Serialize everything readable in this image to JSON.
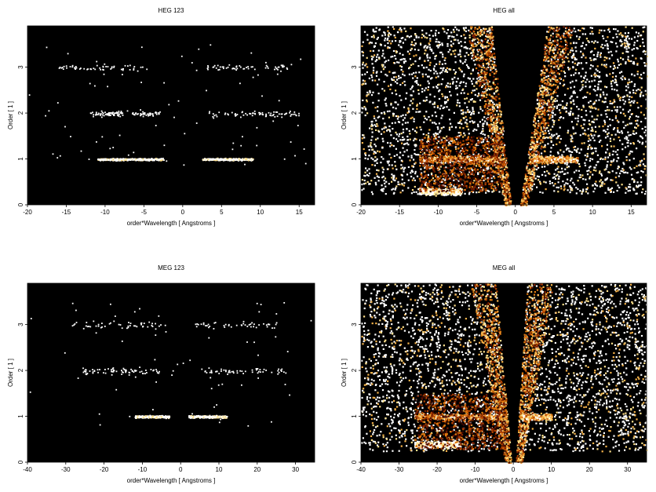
{
  "colors": {
    "background": "#000000",
    "colormap": [
      "#3a0800",
      "#7a1e00",
      "#b34400",
      "#e07a10",
      "#f7b34a",
      "#ffe08a",
      "#ffffff"
    ]
  },
  "chart_data": [
    {
      "type": "heatmap",
      "title": "HEG 123",
      "xlabel": "order*Wavelength [ Angstroms ]",
      "ylabel": "Order [ 1 ]",
      "xlim": [
        -20,
        17
      ],
      "ylim": [
        0,
        3.9
      ],
      "xticks": [
        -20,
        -15,
        -10,
        -5,
        0,
        5,
        10,
        15
      ],
      "yticks": [
        0,
        1,
        2,
        3
      ],
      "legend": "none",
      "grid": false,
      "features": [
        {
          "order": 1,
          "x_range": [
            -11,
            -2.5
          ],
          "density": 0.45
        },
        {
          "order": 1,
          "x_range": [
            2.5,
            9
          ],
          "density": 0.4
        },
        {
          "order": 2,
          "x_range": [
            -12,
            -3
          ],
          "density": 0.12
        },
        {
          "order": 2,
          "x_range": [
            3,
            15
          ],
          "density": 0.08
        },
        {
          "order": 3,
          "x_range": [
            -16,
            -4
          ],
          "density": 0.06
        },
        {
          "order": 3,
          "x_range": [
            3,
            14
          ],
          "density": 0.06
        }
      ]
    },
    {
      "type": "heatmap",
      "title": "HEG all",
      "xlabel": "order*Wavelength [ Angstroms ]",
      "ylabel": "Order [ 1 ]",
      "xlim": [
        -20,
        17
      ],
      "ylim": [
        0,
        3.9
      ],
      "xticks": [
        -20,
        -15,
        -10,
        -5,
        0,
        5,
        10,
        15
      ],
      "yticks": [
        0,
        1,
        2,
        3
      ],
      "legend": "none",
      "grid": false,
      "wedge_gap_at_top": [
        -2.5,
        3.5
      ],
      "features": [
        {
          "order": 1,
          "x_range": [
            -12.5,
            -2
          ],
          "density": 0.9
        },
        {
          "order": 1,
          "x_range": [
            2,
            8
          ],
          "density": 0.8
        },
        {
          "order": 0.3,
          "x_range": [
            -12.5,
            -7
          ],
          "density": 1.0
        }
      ]
    },
    {
      "type": "heatmap",
      "title": "MEG 123",
      "xlabel": "order*Wavelength [ Angstroms ]",
      "ylabel": "Order [ 1 ]",
      "xlim": [
        -40,
        35
      ],
      "ylim": [
        0,
        3.9
      ],
      "xticks": [
        -40,
        -30,
        -20,
        -10,
        0,
        10,
        20,
        30
      ],
      "yticks": [
        0,
        1,
        2,
        3
      ],
      "legend": "none",
      "grid": false,
      "features": [
        {
          "order": 1,
          "x_range": [
            -12,
            -3
          ],
          "density": 0.5
        },
        {
          "order": 1,
          "x_range": [
            2,
            12
          ],
          "density": 0.45
        },
        {
          "order": 2,
          "x_range": [
            -26,
            -5
          ],
          "density": 0.08
        },
        {
          "order": 2,
          "x_range": [
            5,
            28
          ],
          "density": 0.06
        },
        {
          "order": 3,
          "x_range": [
            -30,
            -4
          ],
          "density": 0.05
        },
        {
          "order": 3,
          "x_range": [
            3,
            25
          ],
          "density": 0.05
        }
      ]
    },
    {
      "type": "heatmap",
      "title": "MEG all",
      "xlabel": "order*Wavelength [ Angstroms ]",
      "ylabel": "Order [ 1 ]",
      "xlim": [
        -40,
        35
      ],
      "ylim": [
        0,
        3.9
      ],
      "xticks": [
        -40,
        -30,
        -20,
        -10,
        0,
        10,
        20,
        30
      ],
      "yticks": [
        0,
        1,
        2,
        3
      ],
      "legend": "none",
      "grid": false,
      "wedge_gap_at_top": [
        -4,
        3
      ],
      "features": [
        {
          "order": 1,
          "x_range": [
            -26,
            -2
          ],
          "density": 0.9
        },
        {
          "order": 1,
          "x_range": [
            2,
            10
          ],
          "density": 0.8
        },
        {
          "order": 0.4,
          "x_range": [
            -26,
            -14
          ],
          "density": 1.0
        }
      ]
    }
  ]
}
